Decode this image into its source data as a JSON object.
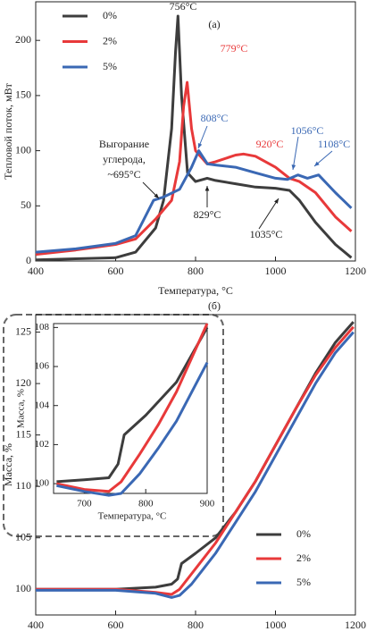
{
  "chart_data": [
    {
      "type": "line",
      "panel": "(а)",
      "xlabel": "Температура, °C",
      "ylabel": "Тепловой поток, мВт",
      "xlim": [
        400,
        1200
      ],
      "ylim": [
        0,
        235
      ],
      "xticks": [
        400,
        600,
        800,
        1000,
        1200
      ],
      "yticks": [
        0,
        50,
        100,
        150,
        200
      ],
      "legend": "upper left",
      "series": [
        {
          "name": "0%",
          "color": "#3d3d3d",
          "x": [
            400,
            500,
            600,
            650,
            700,
            720,
            740,
            750,
            756,
            765,
            780,
            800,
            829,
            850,
            900,
            950,
            1000,
            1035,
            1060,
            1100,
            1150,
            1190
          ],
          "values": [
            1,
            2,
            3,
            8,
            30,
            55,
            120,
            190,
            222,
            150,
            80,
            72,
            75,
            73,
            70,
            67,
            66,
            64,
            55,
            35,
            15,
            3
          ]
        },
        {
          "name": "2%",
          "color": "#e8393a",
          "x": [
            400,
            500,
            600,
            650,
            700,
            740,
            760,
            770,
            779,
            790,
            800,
            829,
            850,
            900,
            920,
            950,
            1000,
            1035,
            1060,
            1100,
            1150,
            1190
          ],
          "values": [
            6,
            10,
            15,
            20,
            38,
            55,
            90,
            140,
            162,
            120,
            100,
            88,
            90,
            96,
            97,
            95,
            85,
            75,
            72,
            62,
            40,
            27
          ]
        },
        {
          "name": "5%",
          "color": "#3a68b4",
          "x": [
            400,
            500,
            600,
            650,
            695,
            720,
            760,
            790,
            808,
            830,
            850,
            900,
            950,
            1000,
            1030,
            1056,
            1080,
            1108,
            1150,
            1190
          ],
          "values": [
            8,
            11,
            16,
            23,
            55,
            58,
            65,
            85,
            100,
            88,
            87,
            85,
            80,
            75,
            74,
            78,
            75,
            78,
            62,
            48
          ]
        }
      ],
      "annotations": [
        {
          "text": "756°C",
          "color": "#222222"
        },
        {
          "text": "779°C",
          "color": "#e8393a"
        },
        {
          "text": "808°C",
          "color": "#3a68b4"
        },
        {
          "text": "920°C",
          "color": "#e8393a"
        },
        {
          "text": "1056°C",
          "color": "#3a68b4"
        },
        {
          "text": "1108°C",
          "color": "#3a68b4"
        },
        {
          "text": "829°C",
          "color": "#222222"
        },
        {
          "text": "1035°C",
          "color": "#222222"
        },
        {
          "text": [
            "Выгорание",
            "углерода,",
            "~695°C"
          ],
          "color": "#222222"
        }
      ]
    },
    {
      "type": "line",
      "panel": "(б)",
      "ylabel": "Масса, %",
      "xlim": [
        400,
        1200
      ],
      "ylim": [
        97.5,
        126.7
      ],
      "xticks": [
        400,
        600,
        800,
        1000,
        1200
      ],
      "yticks": [
        100,
        105,
        110,
        115,
        120,
        125
      ],
      "legend": "lower right",
      "series": [
        {
          "name": "0%",
          "color": "#3d3d3d",
          "x": [
            400,
            500,
            600,
            700,
            740,
            755,
            765,
            800,
            850,
            900,
            950,
            1000,
            1050,
            1100,
            1150,
            1195
          ],
          "values": [
            100,
            100,
            100,
            100.2,
            100.5,
            101,
            102.5,
            103.5,
            105,
            107.5,
            110.5,
            114,
            117.5,
            121,
            124,
            126
          ]
        },
        {
          "name": "2%",
          "color": "#e8393a",
          "x": [
            400,
            600,
            700,
            740,
            760,
            790,
            820,
            850,
            900,
            950,
            1000,
            1050,
            1100,
            1150,
            1195
          ],
          "values": [
            100,
            100,
            99.7,
            99.5,
            100,
            101.5,
            103,
            104.5,
            107.5,
            110.5,
            114,
            117.5,
            120.8,
            123.5,
            125.5
          ]
        },
        {
          "name": "5%",
          "color": "#3a68b4",
          "x": [
            400,
            600,
            700,
            740,
            760,
            790,
            820,
            850,
            900,
            950,
            1000,
            1050,
            1100,
            1150,
            1195
          ],
          "values": [
            99.9,
            99.9,
            99.6,
            99.2,
            99.4,
            100.5,
            102,
            103.5,
            106.5,
            109.5,
            113,
            116.5,
            120,
            123,
            125
          ]
        }
      ]
    },
    {
      "type": "line",
      "xlabel": "Температура, °C",
      "ylabel": "Масса, %",
      "xlim": [
        650,
        900
      ],
      "ylim": [
        99.5,
        108.2
      ],
      "xticks": [
        700,
        800,
        900
      ],
      "yticks": [
        100,
        102,
        104,
        106,
        108
      ],
      "series": [
        {
          "color": "#3d3d3d",
          "x": [
            655,
            700,
            740,
            755,
            765,
            800,
            850,
            900
          ],
          "values": [
            100.1,
            100.2,
            100.3,
            101,
            102.5,
            103.5,
            105.2,
            108
          ]
        },
        {
          "color": "#e8393a",
          "x": [
            655,
            700,
            740,
            760,
            790,
            820,
            850,
            900
          ],
          "values": [
            100,
            99.7,
            99.6,
            100.1,
            101.5,
            103,
            104.7,
            108.2
          ]
        },
        {
          "color": "#3a68b4",
          "x": [
            655,
            700,
            740,
            760,
            790,
            820,
            850,
            900
          ],
          "values": [
            99.9,
            99.6,
            99.4,
            99.5,
            100.5,
            101.8,
            103.2,
            106.2
          ]
        }
      ]
    }
  ]
}
